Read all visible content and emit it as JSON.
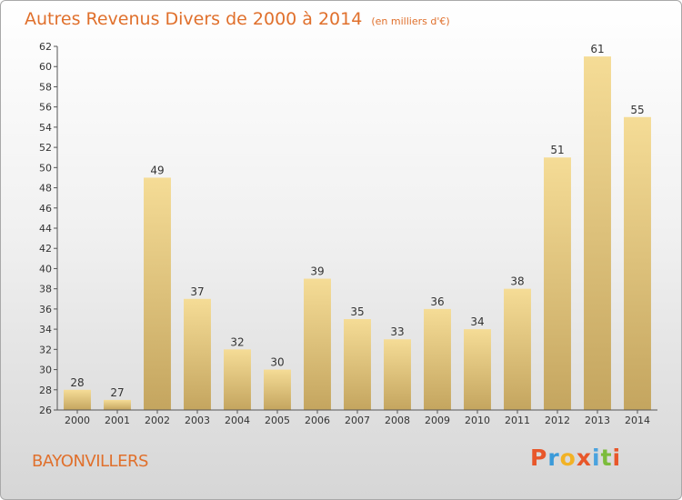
{
  "chart_data": {
    "type": "bar",
    "title": "Autres Revenus Divers de 2000 à 2014",
    "subtitle": "(en milliers d'€)",
    "xlabel": "",
    "ylabel": "",
    "categories": [
      "2000",
      "2001",
      "2002",
      "2003",
      "2004",
      "2005",
      "2006",
      "2007",
      "2008",
      "2009",
      "2010",
      "2011",
      "2012",
      "2013",
      "2014"
    ],
    "values": [
      28,
      27,
      49,
      37,
      32,
      30,
      39,
      35,
      33,
      36,
      34,
      38,
      51,
      61,
      55
    ],
    "ylim": [
      26,
      62
    ],
    "yticks": [
      26,
      28,
      30,
      32,
      34,
      36,
      38,
      40,
      42,
      44,
      46,
      48,
      50,
      52,
      54,
      56,
      58,
      60,
      62
    ],
    "grid": false,
    "legend": "none"
  },
  "place_label": "BAYONVILLERS",
  "logo": {
    "letters": [
      "P",
      "r",
      "o",
      "x",
      "i",
      "t",
      "i"
    ],
    "colors": [
      "#e8572a",
      "#3a9ad9",
      "#f2b225",
      "#e8572a",
      "#4aa3df",
      "#7cbc3b",
      "#e8572a"
    ]
  },
  "colors": {
    "bar_top": "#f5dc96",
    "bar_bottom": "#c4a55f",
    "title": "#e0702c"
  }
}
